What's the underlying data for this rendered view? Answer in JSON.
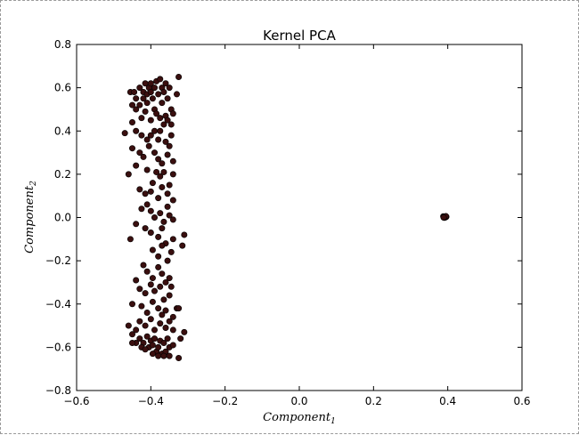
{
  "chart_data": {
    "type": "scatter",
    "title": "Kernel PCA",
    "xlabel": "Component",
    "xlabel_sub": "1",
    "ylabel": "Component",
    "ylabel_sub": "2",
    "xlim": [
      -0.6,
      0.6
    ],
    "ylim": [
      -0.8,
      0.8
    ],
    "xticks": [
      -0.6,
      -0.4,
      -0.2,
      0.0,
      0.2,
      0.4,
      0.6
    ],
    "yticks": [
      -0.8,
      -0.6,
      -0.4,
      -0.2,
      0.0,
      0.2,
      0.4,
      0.6,
      0.8
    ],
    "xtick_labels": [
      "−0.6",
      "−0.4",
      "−0.2",
      "0.0",
      "0.2",
      "0.4",
      "0.6"
    ],
    "ytick_labels": [
      "−0.8",
      "−0.6",
      "−0.4",
      "−0.2",
      "0.0",
      "0.2",
      "0.4",
      "0.6",
      "0.8"
    ],
    "grid": false,
    "marker_color": "#3a0f0f",
    "series": [
      {
        "points": [
          [
            -0.47,
            0.39
          ],
          [
            -0.455,
            0.58
          ],
          [
            -0.45,
            0.52
          ],
          [
            -0.45,
            0.44
          ],
          [
            -0.445,
            0.58
          ],
          [
            -0.44,
            0.55
          ],
          [
            -0.44,
            0.5
          ],
          [
            -0.43,
            0.6
          ],
          [
            -0.43,
            0.52
          ],
          [
            -0.425,
            0.46
          ],
          [
            -0.42,
            0.58
          ],
          [
            -0.42,
            0.55
          ],
          [
            -0.415,
            0.62
          ],
          [
            -0.41,
            0.57
          ],
          [
            -0.41,
            0.53
          ],
          [
            -0.405,
            0.6
          ],
          [
            -0.4,
            0.62
          ],
          [
            -0.4,
            0.58
          ],
          [
            -0.395,
            0.55
          ],
          [
            -0.39,
            0.6
          ],
          [
            -0.39,
            0.5
          ],
          [
            -0.385,
            0.63
          ],
          [
            -0.38,
            0.57
          ],
          [
            -0.375,
            0.64
          ],
          [
            -0.37,
            0.6
          ],
          [
            -0.37,
            0.53
          ],
          [
            -0.365,
            0.58
          ],
          [
            -0.36,
            0.62
          ],
          [
            -0.36,
            0.47
          ],
          [
            -0.355,
            0.55
          ],
          [
            -0.35,
            0.6
          ],
          [
            -0.345,
            0.5
          ],
          [
            -0.34,
            0.48
          ],
          [
            -0.33,
            0.57
          ],
          [
            -0.325,
            0.65
          ],
          [
            -0.415,
            0.49
          ],
          [
            -0.4,
            0.45
          ],
          [
            -0.385,
            0.48
          ],
          [
            -0.375,
            0.46
          ],
          [
            -0.365,
            0.43
          ],
          [
            -0.355,
            0.45
          ],
          [
            -0.345,
            0.43
          ],
          [
            -0.44,
            0.4
          ],
          [
            -0.425,
            0.38
          ],
          [
            -0.41,
            0.36
          ],
          [
            -0.4,
            0.38
          ],
          [
            -0.39,
            0.4
          ],
          [
            -0.38,
            0.36
          ],
          [
            -0.375,
            0.4
          ],
          [
            -0.36,
            0.35
          ],
          [
            -0.35,
            0.33
          ],
          [
            -0.345,
            0.38
          ],
          [
            -0.45,
            0.32
          ],
          [
            -0.43,
            0.3
          ],
          [
            -0.42,
            0.28
          ],
          [
            -0.405,
            0.33
          ],
          [
            -0.39,
            0.3
          ],
          [
            -0.38,
            0.27
          ],
          [
            -0.37,
            0.25
          ],
          [
            -0.355,
            0.29
          ],
          [
            -0.34,
            0.26
          ],
          [
            -0.46,
            0.2
          ],
          [
            -0.44,
            0.24
          ],
          [
            -0.41,
            0.22
          ],
          [
            -0.395,
            0.16
          ],
          [
            -0.385,
            0.21
          ],
          [
            -0.375,
            0.19
          ],
          [
            -0.365,
            0.21
          ],
          [
            -0.35,
            0.15
          ],
          [
            -0.34,
            0.2
          ],
          [
            -0.43,
            0.13
          ],
          [
            -0.415,
            0.11
          ],
          [
            -0.4,
            0.12
          ],
          [
            -0.38,
            0.09
          ],
          [
            -0.37,
            0.14
          ],
          [
            -0.355,
            0.11
          ],
          [
            -0.34,
            0.08
          ],
          [
            -0.425,
            0.04
          ],
          [
            -0.41,
            0.06
          ],
          [
            -0.4,
            0.03
          ],
          [
            -0.39,
            0.0
          ],
          [
            -0.375,
            0.02
          ],
          [
            -0.365,
            -0.02
          ],
          [
            -0.355,
            0.05
          ],
          [
            -0.35,
            0.01
          ],
          [
            -0.34,
            -0.01
          ],
          [
            -0.44,
            -0.03
          ],
          [
            -0.415,
            -0.05
          ],
          [
            -0.4,
            -0.07
          ],
          [
            -0.38,
            -0.09
          ],
          [
            -0.37,
            -0.05
          ],
          [
            -0.455,
            -0.1
          ],
          [
            -0.36,
            -0.12
          ],
          [
            -0.34,
            -0.1
          ],
          [
            -0.31,
            -0.08
          ],
          [
            -0.395,
            -0.15
          ],
          [
            -0.38,
            -0.18
          ],
          [
            -0.37,
            -0.13
          ],
          [
            -0.355,
            -0.2
          ],
          [
            -0.345,
            -0.16
          ],
          [
            -0.315,
            -0.13
          ],
          [
            -0.42,
            -0.22
          ],
          [
            -0.41,
            -0.25
          ],
          [
            -0.395,
            -0.28
          ],
          [
            -0.38,
            -0.23
          ],
          [
            -0.37,
            -0.26
          ],
          [
            -0.36,
            -0.3
          ],
          [
            -0.35,
            -0.28
          ],
          [
            -0.44,
            -0.29
          ],
          [
            -0.43,
            -0.33
          ],
          [
            -0.415,
            -0.35
          ],
          [
            -0.4,
            -0.31
          ],
          [
            -0.39,
            -0.34
          ],
          [
            -0.375,
            -0.32
          ],
          [
            -0.365,
            -0.38
          ],
          [
            -0.35,
            -0.36
          ],
          [
            -0.345,
            -0.32
          ],
          [
            -0.45,
            -0.4
          ],
          [
            -0.425,
            -0.41
          ],
          [
            -0.41,
            -0.44
          ],
          [
            -0.395,
            -0.39
          ],
          [
            -0.38,
            -0.42
          ],
          [
            -0.37,
            -0.45
          ],
          [
            -0.36,
            -0.43
          ],
          [
            -0.34,
            -0.46
          ],
          [
            -0.33,
            -0.42
          ],
          [
            -0.325,
            -0.42
          ],
          [
            -0.43,
            -0.48
          ],
          [
            -0.415,
            -0.5
          ],
          [
            -0.4,
            -0.47
          ],
          [
            -0.39,
            -0.52
          ],
          [
            -0.375,
            -0.49
          ],
          [
            -0.36,
            -0.51
          ],
          [
            -0.35,
            -0.48
          ],
          [
            -0.34,
            -0.52
          ],
          [
            -0.46,
            -0.5
          ],
          [
            -0.45,
            -0.54
          ],
          [
            -0.44,
            -0.52
          ],
          [
            -0.43,
            -0.56
          ],
          [
            -0.42,
            -0.58
          ],
          [
            -0.41,
            -0.55
          ],
          [
            -0.405,
            -0.6
          ],
          [
            -0.4,
            -0.57
          ],
          [
            -0.395,
            -0.59
          ],
          [
            -0.39,
            -0.56
          ],
          [
            -0.385,
            -0.62
          ],
          [
            -0.38,
            -0.6
          ],
          [
            -0.375,
            -0.57
          ],
          [
            -0.37,
            -0.63
          ],
          [
            -0.365,
            -0.58
          ],
          [
            -0.36,
            -0.62
          ],
          [
            -0.355,
            -0.56
          ],
          [
            -0.35,
            -0.6
          ],
          [
            -0.34,
            -0.59
          ],
          [
            -0.32,
            -0.56
          ],
          [
            -0.31,
            -0.53
          ],
          [
            -0.44,
            -0.58
          ],
          [
            -0.425,
            -0.6
          ],
          [
            -0.415,
            -0.61
          ],
          [
            -0.395,
            -0.63
          ],
          [
            -0.38,
            -0.64
          ],
          [
            -0.365,
            -0.64
          ],
          [
            -0.35,
            -0.64
          ],
          [
            -0.325,
            -0.65
          ],
          [
            -0.45,
            -0.58
          ],
          [
            0.388,
            0.005
          ],
          [
            0.39,
            0.002
          ],
          [
            0.392,
            0.004
          ],
          [
            0.394,
            0.001
          ],
          [
            0.396,
            0.003
          ],
          [
            0.391,
            -0.001
          ],
          [
            0.395,
            0.006
          ],
          [
            0.389,
            0.0
          ]
        ]
      }
    ]
  }
}
